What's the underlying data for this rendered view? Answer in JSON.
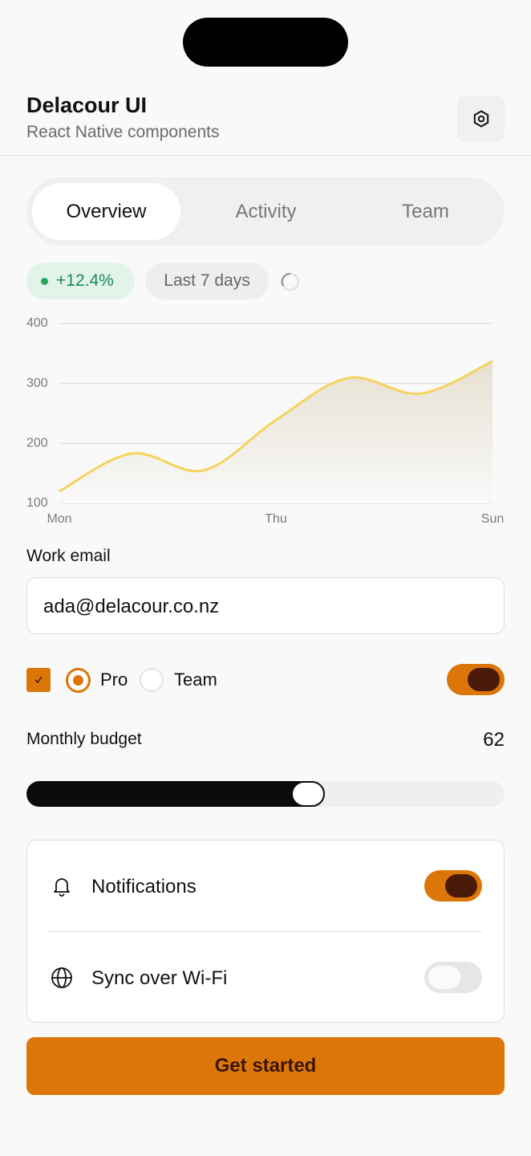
{
  "header": {
    "title": "Delacour UI",
    "subtitle": "React Native components"
  },
  "tabs": {
    "items": [
      "Overview",
      "Activity",
      "Team"
    ],
    "active": 0
  },
  "badges": {
    "change": "+12.4%",
    "range": "Last 7 days"
  },
  "chart_data": {
    "type": "line",
    "categories": [
      "Mon",
      null,
      null,
      "Thu",
      null,
      null,
      "Sun"
    ],
    "values": [
      120,
      183,
      155,
      239,
      309,
      283,
      337
    ],
    "color": "#f5d35c",
    "ylim": [
      100,
      400
    ],
    "yticks": [
      100,
      200,
      300,
      400
    ],
    "grid": true
  },
  "form": {
    "email_label": "Work email",
    "email_value": "ada@delacour.co.nz"
  },
  "options": {
    "checked": true,
    "radios": [
      "Pro",
      "Team"
    ],
    "selected": 0,
    "toggle_on": true
  },
  "budget": {
    "label": "Monthly budget",
    "value": 62
  },
  "settings": [
    {
      "label": "Notifications",
      "on": true
    },
    {
      "label": "Sync over Wi-Fi",
      "on": false
    }
  ],
  "button": {
    "label": "Get started"
  }
}
